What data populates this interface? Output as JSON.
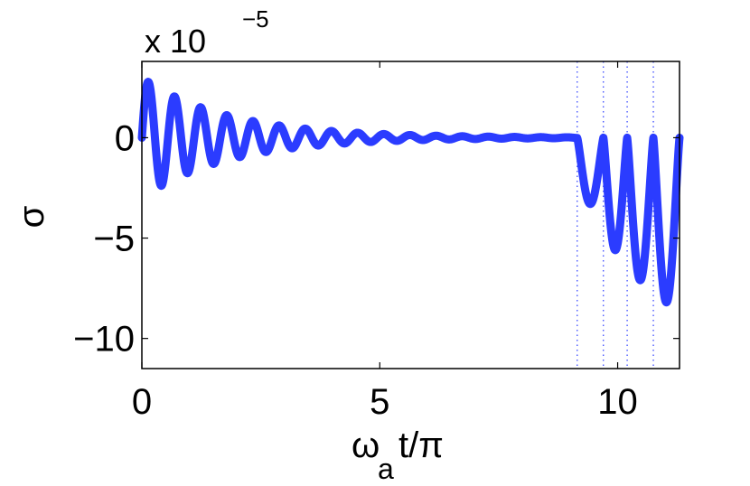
{
  "chart_data": {
    "type": "line",
    "xlabel_main": "ω",
    "xlabel_sub": "a",
    "xlabel_tail": "t/π",
    "ylabel": "σ",
    "y_multiplier": "x 10",
    "y_exponent": "−5",
    "xlim": [
      0,
      11.3
    ],
    "ylim": [
      -11.5,
      3.8
    ],
    "x_ticks": [
      0,
      5,
      10
    ],
    "x_tick_labels": [
      "0",
      "5",
      "10"
    ],
    "y_ticks": [
      0,
      -5,
      -10
    ],
    "y_tick_labels": [
      "0",
      "−5",
      "−10"
    ],
    "grid": false,
    "dotted_vlines": [
      9.15,
      9.7,
      10.2,
      10.75
    ],
    "series": [
      {
        "color": "#2b3cff",
        "segments": [
          {
            "shape": "decaying-oscillation",
            "x_start": 0,
            "x_end": 9.15,
            "amplitude": 3.0,
            "period": 0.55,
            "decay": 0.55
          },
          {
            "shape": "growing-oscillation",
            "x_start": 9.15,
            "x_end": 11.3,
            "min_values": [
              -3.3,
              -5.6,
              -7.1,
              -8.2
            ]
          }
        ]
      }
    ]
  }
}
